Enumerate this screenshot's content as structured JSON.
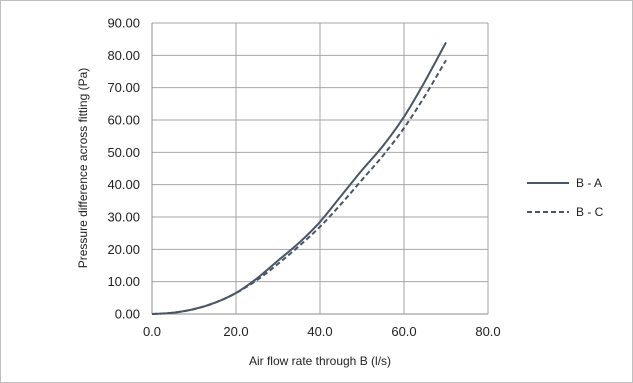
{
  "chart_data": {
    "type": "line",
    "title": "",
    "xlabel": "Air flow rate through B (l/s)",
    "ylabel": "Pressure difference across fitting (Pa)",
    "xlim": [
      0,
      80
    ],
    "ylim": [
      0,
      90
    ],
    "x_ticks": [
      "0.0",
      "20.0",
      "40.0",
      "60.0",
      "80.0"
    ],
    "y_ticks": [
      "0.00",
      "10.00",
      "20.00",
      "30.00",
      "40.00",
      "50.00",
      "60.00",
      "70.00",
      "80.00",
      "90.00"
    ],
    "grid": true,
    "legend_position": "right",
    "series": [
      {
        "name": "B - A",
        "style": "solid",
        "color": "#4a5667",
        "x": [
          0,
          5,
          10,
          15,
          20,
          25,
          30,
          35,
          40,
          45,
          50,
          55,
          60,
          65,
          70
        ],
        "y": [
          0.0,
          0.4,
          1.5,
          3.5,
          6.5,
          11.0,
          16.5,
          22.0,
          28.5,
          36.5,
          44.5,
          52.0,
          61.0,
          72.0,
          84.0
        ]
      },
      {
        "name": "B - C",
        "style": "dashed",
        "color": "#4a5667",
        "x": [
          0,
          5,
          10,
          15,
          20,
          25,
          30,
          35,
          40,
          45,
          50,
          55,
          60,
          65,
          70
        ],
        "y": [
          0.0,
          0.4,
          1.5,
          3.5,
          6.5,
          10.5,
          15.5,
          21.0,
          27.0,
          34.0,
          41.5,
          49.0,
          57.5,
          67.5,
          78.5
        ]
      }
    ]
  }
}
